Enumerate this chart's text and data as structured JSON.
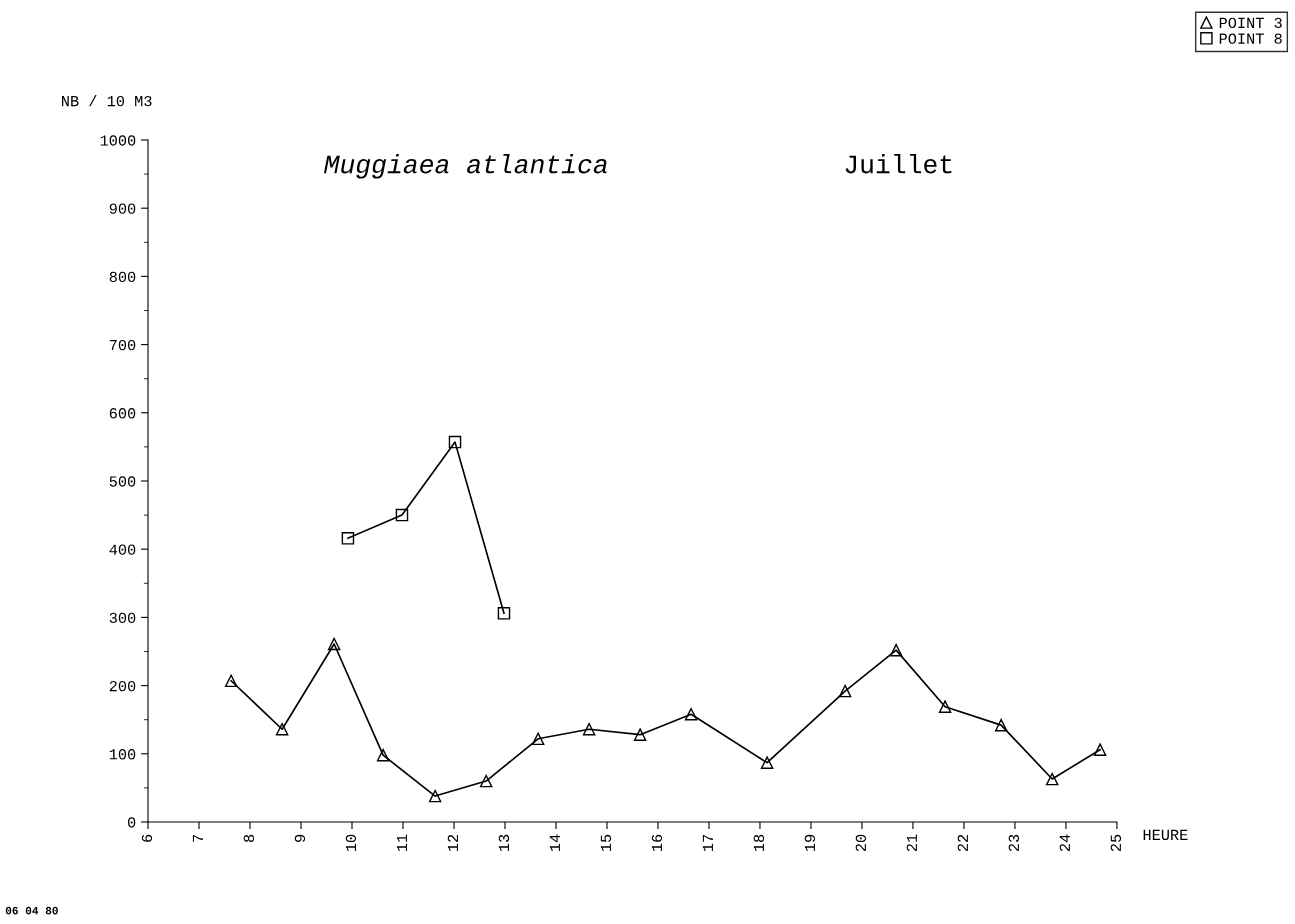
{
  "chart_data": {
    "type": "line",
    "title": "Muggiaea atlantica",
    "subtitle": "Juillet",
    "xlabel": "HEURE",
    "ylabel": "NB / 10 M3",
    "xlim": [
      6,
      25
    ],
    "xticks": [
      6,
      7,
      8,
      9,
      10,
      11,
      12,
      13,
      14,
      15,
      16,
      17,
      18,
      19,
      20,
      21,
      22,
      23,
      24,
      25
    ],
    "ylim": [
      0,
      1000
    ],
    "yticks": [
      0,
      100,
      200,
      300,
      400,
      500,
      600,
      700,
      800,
      900,
      1000
    ],
    "grid": false,
    "legend": "top right",
    "line_style": "solid",
    "annotations": [
      "06 04 80"
    ],
    "series": [
      {
        "name": "POINT 3",
        "color": "#000000",
        "marker": "triangle",
        "x": [
          7.63,
          8.63,
          9.65,
          10.61,
          11.63,
          12.63,
          13.65,
          14.65,
          15.65,
          16.65,
          18.14,
          19.67,
          20.67,
          21.63,
          22.73,
          23.73,
          24.67
        ],
        "values": [
          207,
          136,
          261,
          98,
          38,
          60,
          122,
          136,
          128,
          158,
          87,
          192,
          252,
          169,
          142,
          63,
          106
        ]
      },
      {
        "name": "POINT 8",
        "color": "#000000",
        "marker": "square",
        "x": [
          9.92,
          10.98,
          12.02,
          12.98
        ],
        "values": [
          416,
          450,
          557,
          306
        ]
      }
    ]
  }
}
